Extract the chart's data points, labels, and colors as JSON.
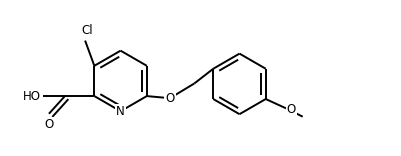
{
  "bg_color": "#ffffff",
  "bond_color": "#000000",
  "bond_width": 1.4,
  "dbo": 0.055,
  "font_size": 8.5,
  "figsize": [
    4.01,
    1.56
  ],
  "dpi": 100,
  "xlim": [
    0.0,
    9.5
  ],
  "ylim": [
    0.5,
    3.8
  ]
}
